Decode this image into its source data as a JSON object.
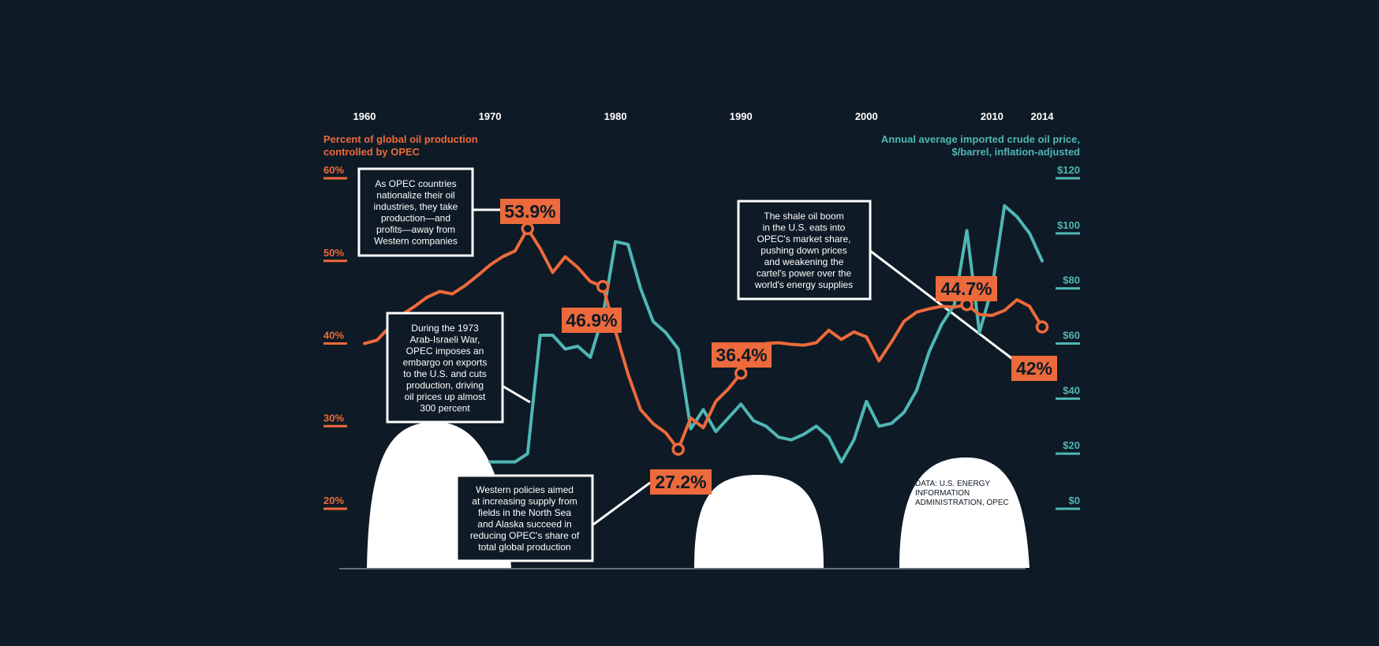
{
  "colors": {
    "background": "#0e1a25",
    "opec_line": "#ec6a3c",
    "price_line": "#4fb7b5",
    "white": "#ffffff",
    "dark_text": "#0e1a25"
  },
  "chart_data": {
    "type": "line",
    "x_ticks": [
      "1960",
      "1970",
      "1980",
      "1990",
      "2000",
      "2010",
      "2014"
    ],
    "left_axis": {
      "title_lines": [
        "Percent of global oil production",
        "controlled by OPEC"
      ],
      "ticks": [
        "60%",
        "50%",
        "40%",
        "30%",
        "20%"
      ],
      "ylim": [
        20,
        60
      ]
    },
    "right_axis": {
      "title_lines": [
        "Annual average imported crude oil price,",
        "$/barrel, inflation-adjusted"
      ],
      "ticks": [
        "$120",
        "$100",
        "$80",
        "$60",
        "$40",
        "$20",
        "$0"
      ],
      "ylim": [
        0,
        120
      ]
    },
    "series": [
      {
        "axis": "left",
        "x": [
          1960,
          1961,
          1962,
          1963,
          1964,
          1965,
          1966,
          1967,
          1968,
          1969,
          1970,
          1971,
          1972,
          1973,
          1974,
          1975,
          1976,
          1977,
          1978,
          1979,
          1980,
          1981,
          1982,
          1983,
          1984,
          1985,
          1986,
          1987,
          1988,
          1989,
          1990,
          1991,
          1992,
          1993,
          1994,
          1995,
          1996,
          1997,
          1998,
          1999,
          2000,
          2001,
          2002,
          2003,
          2004,
          2005,
          2006,
          2007,
          2008,
          2009,
          2010,
          2011,
          2012,
          2013,
          2014
        ],
        "values": [
          40.0,
          40.4,
          42.0,
          43.5,
          44.5,
          45.6,
          46.3,
          46.0,
          47.0,
          48.2,
          49.5,
          50.5,
          51.2,
          53.9,
          51.5,
          48.6,
          50.5,
          49.2,
          47.5,
          46.9,
          41.5,
          36.3,
          32.0,
          30.3,
          29.2,
          27.2,
          31.0,
          29.8,
          33.0,
          34.5,
          36.4,
          39.0,
          40.0,
          40.1,
          39.9,
          39.8,
          40.1,
          41.6,
          40.5,
          41.4,
          40.8,
          37.9,
          40.2,
          42.7,
          43.8,
          44.2,
          44.5,
          44.4,
          44.7,
          43.5,
          43.4,
          44.0,
          45.3,
          44.5,
          42.0
        ]
      },
      {
        "axis": "right",
        "x": [
          1970,
          1971,
          1972,
          1973,
          1974,
          1975,
          1976,
          1977,
          1978,
          1979,
          1980,
          1981,
          1982,
          1983,
          1984,
          1985,
          1986,
          1987,
          1988,
          1989,
          1990,
          1991,
          1992,
          1993,
          1994,
          1995,
          1996,
          1997,
          1998,
          1999,
          2000,
          2001,
          2002,
          2003,
          2004,
          2005,
          2006,
          2007,
          2008,
          2009,
          2010,
          2011,
          2012,
          2013,
          2014
        ],
        "values": [
          17,
          17,
          17,
          20,
          63,
          63,
          58,
          59,
          55,
          70,
          97,
          96,
          80,
          68,
          64,
          58,
          29,
          36,
          28,
          33,
          38,
          32,
          30,
          26,
          25,
          27,
          30,
          26,
          17,
          25,
          39,
          30,
          31,
          35,
          43,
          57,
          67,
          74,
          101,
          64,
          80,
          110,
          106,
          100,
          90
        ]
      }
    ],
    "callouts": [
      {
        "label": "53.9%",
        "x": 1973,
        "value": 53.9
      },
      {
        "label": "46.9%",
        "x": 1979,
        "value": 46.9
      },
      {
        "label": "27.2%",
        "x": 1985,
        "value": 27.2
      },
      {
        "label": "36.4%",
        "x": 1990,
        "value": 36.4
      },
      {
        "label": "44.7%",
        "x": 2008,
        "value": 44.7
      },
      {
        "label": "42%",
        "x": 2014,
        "value": 42.0
      }
    ]
  },
  "annotations": {
    "nationalize": [
      "As OPEC countries",
      "nationalize their oil",
      "industries, they take",
      "production—and",
      "profits—away from",
      "Western companies"
    ],
    "embargo": [
      "During the 1973",
      "Arab-Israeli War,",
      "OPEC imposes an",
      "embargo on exports",
      "to the U.S. and cuts",
      "production, driving",
      "oil prices up almost",
      "300 percent"
    ],
    "western": [
      "Western policies aimed",
      "at increasing supply from",
      "fields in the North Sea",
      "and Alaska succeed in",
      "reducing OPEC's share of",
      "total global production"
    ],
    "shale": [
      "The shale oil boom",
      "in the U.S. eats into",
      "OPEC's market share,",
      "pushing down prices",
      "and weakening the",
      "cartel's power over the",
      "world's energy supplies"
    ],
    "source": [
      "DATA: U.S. ENERGY",
      "INFORMATION",
      "ADMINISTRATION, OPEC"
    ]
  }
}
